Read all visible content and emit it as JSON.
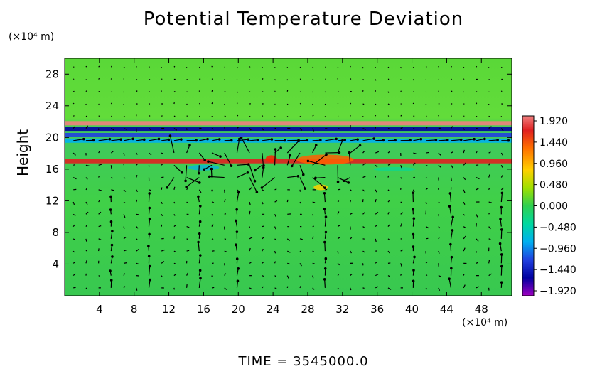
{
  "chart_data": {
    "type": "heatmap",
    "title": "Potential Temperature Deviation",
    "ylabel": "Height",
    "y_unit": "(×10⁴ m)",
    "x_unit": "(×10⁴ m)",
    "footer": "TIME = 3545000.0",
    "x_range": [
      0,
      51.5
    ],
    "y_range": [
      0,
      30
    ],
    "x_ticks": [
      4,
      8,
      12,
      16,
      20,
      24,
      28,
      32,
      36,
      40,
      44,
      48
    ],
    "y_ticks": [
      4,
      8,
      12,
      16,
      20,
      24,
      28
    ],
    "colorbar": {
      "values": [
        1.92,
        1.44,
        0.96,
        0.48,
        0.0,
        -0.48,
        -0.96,
        -1.44,
        -1.92
      ],
      "labels": [
        "1.920",
        "1.440",
        "0.960",
        "0.480",
        "0.000",
        "−0.480",
        "−0.960",
        "−1.440",
        "−1.920"
      ],
      "range": [
        -1.92,
        1.92
      ]
    },
    "features": {
      "background_value": 0.3,
      "bands": [
        {
          "y": 21.8,
          "value": 1.6
        },
        {
          "y": 21.1,
          "value": -1.8
        },
        {
          "y": 20.3,
          "value": -1.6
        },
        {
          "y": 19.6,
          "value": -0.9
        },
        {
          "y": 17.0,
          "value": 1.4
        }
      ]
    }
  }
}
